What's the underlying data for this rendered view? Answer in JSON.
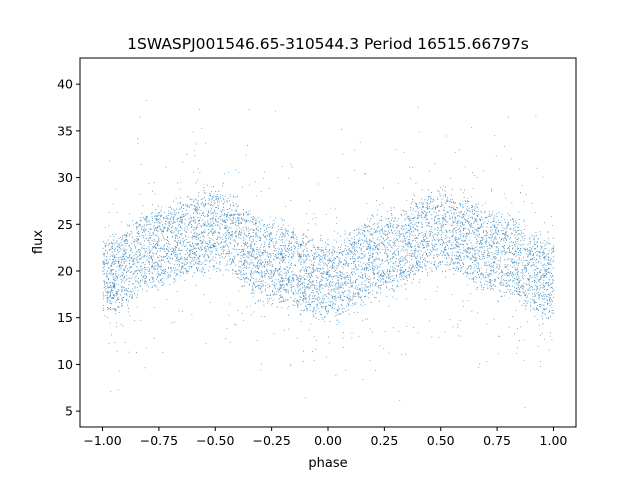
{
  "chart_data": {
    "type": "scatter",
    "title": "1SWASPJ001546.65-310544.3 Period 16515.66797s",
    "xlabel": "phase",
    "ylabel": "flux",
    "xlim": [
      -1.1,
      1.1
    ],
    "ylim": [
      3.3,
      42.8
    ],
    "xticks": [
      -1.0,
      -0.75,
      -0.5,
      -0.25,
      0.0,
      0.25,
      0.5,
      0.75,
      1.0
    ],
    "xtick_labels": [
      "−1.00",
      "−0.75",
      "−0.50",
      "−0.25",
      "0.00",
      "0.25",
      "0.50",
      "0.75",
      "1.00"
    ],
    "yticks": [
      5,
      10,
      15,
      20,
      25,
      30,
      35,
      40
    ],
    "ytick_labels": [
      "5",
      "10",
      "15",
      "20",
      "25",
      "30",
      "35",
      "40"
    ],
    "grid": false,
    "point_color": "#1f77b4",
    "series_model": {
      "x_range": [
        -1.0,
        1.0
      ],
      "mean_curve": {
        "phase": [
          -1.0,
          -0.75,
          -0.5,
          -0.25,
          0.0,
          0.25,
          0.5,
          0.75,
          1.0
        ],
        "flux": [
          19.5,
          22.5,
          24.5,
          21.0,
          19.0,
          22.0,
          24.5,
          22.0,
          19.0
        ]
      },
      "band_halfwidth": 4.5,
      "outlier_range": [
        5,
        40
      ]
    }
  }
}
